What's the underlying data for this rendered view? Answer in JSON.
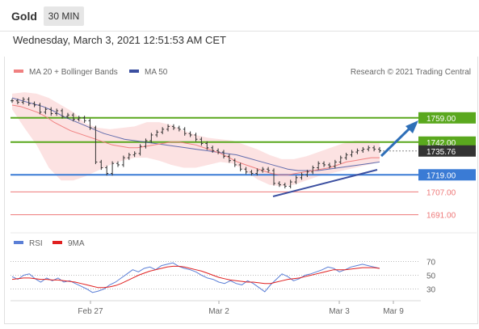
{
  "header": {
    "title": "Gold",
    "timeframe_tab": "30 MIN"
  },
  "datetime": "Wednesday, March 3, 2021 12:51:53 AM CET",
  "legend": {
    "ma_bollinger": "MA 20 + Bollinger Bands",
    "ma50": "MA 50",
    "credit": "Research © 2021 Trading Central",
    "rsi": "RSI",
    "rsi_ma": "9MA"
  },
  "colors": {
    "price": "#333333",
    "ma20": "#f08080",
    "bands_fill": "#fbd5d5",
    "ma50": "#3b4fa0",
    "resistance": "#5aa81e",
    "support_blue": "#3a7bd5",
    "support_red": "#ee7777",
    "trendline": "#3b4fa0",
    "arrow": "#2e6fb8",
    "rsi": "#5b7fd6",
    "rsi_ma": "#e02020"
  },
  "chart_data": [
    {
      "type": "line",
      "name": "price",
      "x_ticks": [
        "Feb 27",
        "Mar 2",
        "Mar 3",
        "Mar 9"
      ],
      "ylim": [
        1680,
        1785
      ],
      "levels": [
        {
          "value": 1759.0,
          "label": "1759.00",
          "role": "resistance",
          "color": "#5aa81e"
        },
        {
          "value": 1742.0,
          "label": "1742.00",
          "role": "pivot",
          "color": "#5aa81e"
        },
        {
          "value": 1735.76,
          "label": "1735.76",
          "role": "last-price",
          "color": "#333333"
        },
        {
          "value": 1719.0,
          "label": "1719.00",
          "role": "support",
          "color": "#3a7bd5"
        },
        {
          "value": 1707.0,
          "label": "1707.00",
          "role": "support",
          "color": "#ee7777"
        },
        {
          "value": 1691.0,
          "label": "1691.00",
          "role": "support",
          "color": "#ee7777"
        }
      ],
      "close": [
        1771,
        1770,
        1772,
        1769,
        1768,
        1763,
        1765,
        1762,
        1764,
        1760,
        1761,
        1758,
        1759,
        1757,
        1752,
        1728,
        1724,
        1720,
        1727,
        1726,
        1731,
        1733,
        1734,
        1739,
        1743,
        1747,
        1749,
        1751,
        1753,
        1752,
        1751,
        1748,
        1747,
        1744,
        1741,
        1738,
        1736,
        1735,
        1732,
        1729,
        1726,
        1723,
        1721,
        1720,
        1722,
        1723,
        1722,
        1713,
        1712,
        1711,
        1714,
        1717,
        1719,
        1721,
        1724,
        1727,
        1726,
        1725,
        1728,
        1731,
        1733,
        1735,
        1736,
        1737,
        1738,
        1737,
        1736
      ],
      "ma20": [
        1768,
        1767,
        1765,
        1763,
        1760,
        1756,
        1753,
        1750,
        1748,
        1746,
        1744,
        1742,
        1740,
        1739,
        1738,
        1738,
        1739,
        1740,
        1741,
        1742,
        1742,
        1741,
        1740,
        1738,
        1736,
        1734,
        1731,
        1728,
        1726,
        1724,
        1722,
        1720,
        1719,
        1719,
        1720,
        1721,
        1722,
        1723,
        1724,
        1726,
        1728,
        1729,
        1730,
        1731,
        1731
      ],
      "ma50": [
        1773,
        1771,
        1769,
        1767,
        1764,
        1760,
        1757,
        1754,
        1751,
        1748,
        1746,
        1744,
        1743,
        1742,
        1741,
        1740,
        1739,
        1738,
        1737,
        1736,
        1735,
        1734,
        1733,
        1731,
        1729,
        1727,
        1725,
        1723,
        1722,
        1722,
        1722,
        1723,
        1724,
        1725,
        1726,
        1727,
        1728
      ],
      "bollinger_upper": [
        1776,
        1777,
        1776,
        1773,
        1768,
        1763,
        1755,
        1752,
        1751,
        1752,
        1753,
        1756,
        1756,
        1754,
        1750,
        1747,
        1745,
        1744,
        1743,
        1740,
        1737,
        1733,
        1730,
        1730,
        1732,
        1735,
        1738,
        1741,
        1743,
        1743,
        1742
      ],
      "bollinger_lower": [
        1765,
        1752,
        1740,
        1724,
        1715,
        1715,
        1718,
        1722,
        1726,
        1729,
        1731,
        1731,
        1729,
        1726,
        1724,
        1724,
        1726,
        1728,
        1727,
        1722,
        1716,
        1712,
        1711,
        1712,
        1715,
        1718,
        1720,
        1722,
        1724,
        1726,
        1728
      ]
    },
    {
      "type": "line",
      "name": "RSI",
      "ylim": [
        20,
        80
      ],
      "y_ticks": [
        "70",
        "50",
        "30"
      ],
      "rsi": [
        48,
        44,
        50,
        52,
        45,
        40,
        46,
        42,
        46,
        40,
        42,
        38,
        34,
        30,
        25,
        27,
        30,
        36,
        40,
        46,
        52,
        58,
        55,
        60,
        62,
        58,
        64,
        66,
        68,
        63,
        60,
        58,
        55,
        50,
        46,
        44,
        40,
        38,
        42,
        38,
        36,
        42,
        38,
        32,
        26,
        36,
        44,
        52,
        48,
        42,
        45,
        50,
        52,
        55,
        58,
        62,
        60,
        55,
        58,
        62,
        64,
        66,
        64,
        62,
        60
      ],
      "rsi_ma": [
        44,
        45,
        46,
        46,
        45,
        44,
        44,
        43,
        43,
        42,
        41,
        40,
        38,
        36,
        34,
        32,
        32,
        33,
        35,
        38,
        42,
        46,
        50,
        53,
        56,
        58,
        60,
        62,
        63,
        63,
        62,
        60,
        58,
        56,
        53,
        50,
        47,
        45,
        43,
        42,
        41,
        40,
        40,
        39,
        38,
        38,
        40,
        42,
        44,
        45,
        46,
        48,
        50,
        52,
        54,
        56,
        58,
        58,
        58,
        59,
        60,
        61,
        61,
        61,
        60
      ]
    }
  ]
}
